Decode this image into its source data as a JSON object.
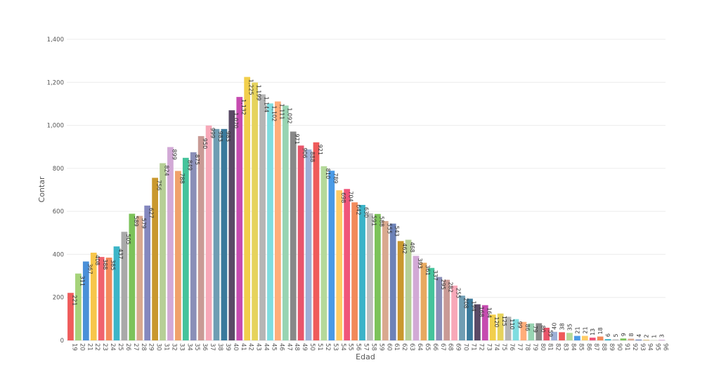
{
  "chart_data": {
    "type": "bar",
    "xlabel": "Edad",
    "ylabel": "Contar",
    "ylim": [
      0,
      1400
    ],
    "yticks": [
      "0",
      "200",
      "400",
      "600",
      "800",
      "1,000",
      "1,200",
      "1,400"
    ],
    "ytick_values": [
      0,
      200,
      400,
      600,
      800,
      1000,
      1200,
      1400
    ],
    "grid": true,
    "categories": [
      "19",
      "20",
      "21",
      "22",
      "23",
      "24",
      "25",
      "26",
      "27",
      "28",
      "29",
      "30",
      "31",
      "32",
      "33",
      "34",
      "35",
      "36",
      "37",
      "38",
      "39",
      "40",
      "41",
      "42",
      "43",
      "44",
      "45",
      "46",
      "47",
      "48",
      "49",
      "50",
      "51",
      "52",
      "53",
      "54",
      "55",
      "56",
      "57",
      "58",
      "59",
      "60",
      "61",
      "62",
      "63",
      "64",
      "65",
      "66",
      "67",
      "68",
      "69",
      "70",
      "71",
      "72",
      "73",
      "74",
      "75",
      "76",
      "77",
      "78",
      "79",
      "80",
      "81",
      "82",
      "83",
      "84",
      "85",
      "86",
      "87",
      "88",
      "89",
      "90",
      "91",
      "92",
      "93",
      "94",
      "95",
      "96"
    ],
    "values": [
      221,
      311,
      367,
      408,
      388,
      385,
      437,
      505,
      589,
      579,
      627,
      756,
      824,
      899,
      788,
      849,
      875,
      950,
      999,
      983,
      983,
      1070,
      1132,
      1225,
      1199,
      1144,
      1102,
      1111,
      1092,
      971,
      906,
      888,
      921,
      810,
      789,
      698,
      704,
      642,
      630,
      591,
      588,
      555,
      543,
      462,
      468,
      393,
      361,
      337,
      295,
      282,
      255,
      208,
      194,
      168,
      164,
      120,
      125,
      110,
      99,
      86,
      79,
      80,
      59,
      40,
      38,
      35,
      21,
      21,
      13,
      18,
      6,
      5,
      9,
      8,
      4,
      2,
      1,
      3
    ],
    "bar_labels": [
      "221",
      "311",
      "367",
      "408",
      "388",
      "385",
      "437",
      "505",
      "589",
      "579",
      "627",
      "756",
      "824",
      "899",
      "788",
      "849",
      "875",
      "950",
      "999",
      "983",
      "983",
      "1,070",
      "1,132",
      "1,225",
      "1,199",
      "1,144",
      "1,102",
      "1,111",
      "1,092",
      "971",
      "906",
      "888",
      "921",
      "810",
      "789",
      "698",
      "704",
      "642",
      "630",
      "591",
      "588",
      "555",
      "543",
      "462",
      "468",
      "393",
      "361",
      "337",
      "295",
      "282",
      "255",
      "208",
      "194",
      "168",
      "164",
      "120",
      "125",
      "110",
      "99",
      "86",
      "79",
      "80",
      "59",
      "40",
      "38",
      "35",
      "21",
      "21",
      "13",
      "18",
      "6",
      "5",
      "9",
      "8",
      "4",
      "2",
      "1",
      "3"
    ],
    "colors": [
      "#ef5b5b",
      "#a6d37a",
      "#4a90d9",
      "#f7c64b",
      "#f0626e",
      "#f48a5b",
      "#3cb5c8",
      "#a9a9a9",
      "#7cc35a",
      "#d9a98f",
      "#8488bf",
      "#c9982e",
      "#b6cf96",
      "#d2a9d6",
      "#f0a26b",
      "#45c39b",
      "#8a8fb8",
      "#c99a95",
      "#f7a8b8",
      "#6f9db3",
      "#3a7a9c",
      "#5a4a66",
      "#c64bb0",
      "#f2cf4c",
      "#e6d35c",
      "#b5b5b5",
      "#7fdde0",
      "#ffad7a",
      "#98d4b2",
      "#888888",
      "#e9556a",
      "#9db0d6",
      "#ef5b5b",
      "#b5d99a",
      "#4a9ae6",
      "#ffcc66",
      "#f0557a",
      "#f28a5a",
      "#3bb3c8",
      "#bfbfbf",
      "#7cc35a",
      "#d9a98f",
      "#6d82b8",
      "#c9982e",
      "#b6cf96",
      "#d2a9d6",
      "#e8a960",
      "#45c39b",
      "#8a8fb8",
      "#c99a95",
      "#f7a8b8",
      "#6f9db3",
      "#3a7a9c",
      "#5a4a66",
      "#c64bb0",
      "#f2cf4c",
      "#e6d35c",
      "#b5b5b5",
      "#7fdde0",
      "#ffad7a",
      "#98d4b2",
      "#888888",
      "#e9556a",
      "#9db0d6",
      "#ef5b5b",
      "#b5d99a",
      "#4a9ae6",
      "#ffcc66",
      "#f0557a",
      "#f28a5a",
      "#3bb3c8",
      "#bfbfbf",
      "#7cc35a",
      "#d9a98f",
      "#6d82b8",
      "#c9982e",
      "#b6cf96",
      "#d2a9d6"
    ]
  }
}
